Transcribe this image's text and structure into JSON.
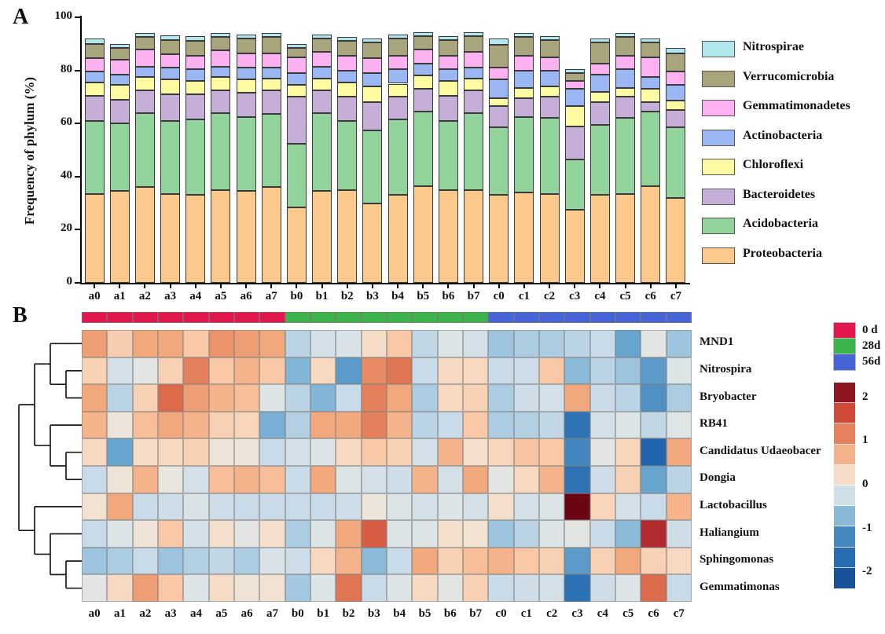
{
  "panel_a": {
    "label": "A",
    "ylabel": "Frequency of phylum (%)",
    "yticks": [
      0,
      20,
      40,
      60,
      80,
      100
    ],
    "ylim": [
      0,
      100
    ]
  },
  "panel_b": {
    "label": "B",
    "colorbar_ticks": [
      2,
      1,
      0,
      -1,
      -2
    ],
    "colorbar_range": [
      -2.35,
      2.35
    ]
  },
  "chart_data": [
    {
      "type": "bar",
      "stacked": true,
      "title": "",
      "xlabel": "",
      "ylabel": "Frequency of phylum (%)",
      "ylim": [
        0,
        100
      ],
      "grid": false,
      "legend_position": "right",
      "categories": [
        "a0",
        "a1",
        "a2",
        "a3",
        "a4",
        "a5",
        "a6",
        "a7",
        "b0",
        "b1",
        "b2",
        "b3",
        "b4",
        "b5",
        "b6",
        "b7",
        "c0",
        "c1",
        "c2",
        "c3",
        "c4",
        "c5",
        "c6",
        "c7"
      ],
      "series": [
        {
          "name": "Proteobacteria",
          "color": "#fbc98b",
          "values": [
            33.5,
            34.5,
            36,
            33.5,
            33,
            35,
            34.5,
            36,
            28.5,
            34.5,
            35,
            30,
            33,
            36.5,
            35,
            35,
            33,
            34,
            33.5,
            27.5,
            33,
            33.5,
            36.5,
            32
          ]
        },
        {
          "name": "Acidobacteria",
          "color": "#92d39c",
          "values": [
            27.5,
            25.5,
            28,
            27.5,
            28.5,
            29,
            28,
            27.5,
            24,
            29.5,
            26,
            27.5,
            28.5,
            28,
            26,
            29,
            25.5,
            28.5,
            28.5,
            19,
            26.5,
            28.5,
            28,
            26.5
          ]
        },
        {
          "name": "Bacteroidetes",
          "color": "#c5aed7",
          "values": [
            9.5,
            9,
            8.5,
            10,
            9.5,
            8.5,
            9,
            9,
            17.5,
            8.5,
            9,
            10.5,
            8.5,
            8.5,
            9.5,
            8.5,
            8,
            7,
            8,
            12.5,
            8.5,
            8,
            3.5,
            6.5
          ]
        },
        {
          "name": "Chloroflexi",
          "color": "#fcfba2",
          "values": [
            5,
            5.5,
            5,
            5.5,
            5,
            5,
            5,
            4.5,
            4.5,
            4.5,
            5.5,
            6,
            5,
            5,
            5.5,
            4.5,
            3,
            4,
            4,
            7.5,
            4,
            3.5,
            5,
            3.5
          ]
        },
        {
          "name": "Actinobacteria",
          "color": "#9ab7f3",
          "values": [
            4,
            4,
            4,
            4.5,
            4.5,
            4,
            4.5,
            4,
            4.5,
            4.5,
            4.5,
            5,
            5.5,
            4.5,
            4.5,
            4,
            7,
            6.5,
            6,
            6.5,
            6.5,
            7,
            4.5,
            6
          ]
        },
        {
          "name": "Gemmatimonadetes",
          "color": "#fcb2f1",
          "values": [
            5,
            5.5,
            6.5,
            5,
            5,
            6,
            5.5,
            5.5,
            6,
            5.5,
            5.5,
            5.5,
            5,
            5.5,
            5,
            6,
            4.5,
            5.5,
            5,
            3,
            4,
            5,
            7.5,
            5
          ]
        },
        {
          "name": "Verrucomicrobia",
          "color": "#a8a47c",
          "values": [
            5.5,
            4.5,
            4.5,
            5.5,
            5.5,
            5,
            5.5,
            6,
            3.5,
            5,
            5.5,
            6,
            6.5,
            5,
            6,
            6,
            8.5,
            7,
            6.5,
            3,
            8,
            7,
            5.5,
            7
          ]
        },
        {
          "name": "Nitrospirae",
          "color": "#b2e7ed",
          "values": [
            2,
            1.5,
            1.5,
            1.7,
            1.8,
            1.5,
            1.5,
            1.5,
            1.5,
            1.5,
            1.5,
            1.5,
            1.5,
            1.5,
            1.5,
            1.5,
            2.5,
            1.5,
            1.5,
            1.5,
            1.5,
            1.5,
            1.5,
            2
          ]
        }
      ]
    },
    {
      "type": "heatmap",
      "columns": [
        "a0",
        "a1",
        "a2",
        "a3",
        "a4",
        "a5",
        "a6",
        "a7",
        "b0",
        "b1",
        "b2",
        "b3",
        "b4",
        "b5",
        "b6",
        "b7",
        "c0",
        "c1",
        "c2",
        "c3",
        "c4",
        "c5",
        "c6",
        "c7"
      ],
      "rows": [
        "MND1",
        "Nitrospira",
        "Bryobacter",
        "RB41",
        "Candidatus Udaeobacer",
        "Dongia",
        "Lactobacillus",
        "Haliangium",
        "Sphingomonas",
        "Gemmatimonas"
      ],
      "value_range": [
        -2,
        2
      ],
      "column_groups": [
        {
          "label": "0 d",
          "color": "#e2174d",
          "from": 0,
          "to": 7
        },
        {
          "label": "28d",
          "color": "#3cb44b",
          "from": 8,
          "to": 15
        },
        {
          "label": "56d",
          "color": "#4565d6",
          "from": 16,
          "to": 23
        }
      ],
      "dendrogram_tree": [
        [
          [
            0,
            [
              1,
              2
            ]
          ],
          [
            3,
            [
              4,
              5
            ]
          ]
        ],
        [
          6,
          [
            7,
            [
              8,
              9
            ]
          ]
        ]
      ],
      "values": [
        [
          0.9,
          0.45,
          0.8,
          0.8,
          0.5,
          1.0,
          0.9,
          0.8,
          -0.4,
          -0.2,
          -0.15,
          0.25,
          0.5,
          -0.35,
          -0.1,
          -0.2,
          -0.6,
          -0.5,
          -0.5,
          -0.4,
          -0.3,
          -0.9,
          -0.05,
          -0.6
        ],
        [
          0.4,
          -0.2,
          -0.05,
          0.4,
          1.2,
          0.5,
          0.7,
          0.5,
          -0.75,
          0.3,
          -1.0,
          1.1,
          1.3,
          -0.3,
          0.3,
          0.3,
          -0.3,
          -0.25,
          0.5,
          -0.7,
          -0.4,
          -0.6,
          -1.0,
          -0.1
        ],
        [
          0.8,
          -0.4,
          0.4,
          1.4,
          0.9,
          0.7,
          0.6,
          -0.1,
          -0.4,
          -0.75,
          -0.3,
          1.2,
          0.8,
          -0.5,
          0.3,
          0.4,
          -0.5,
          -0.25,
          -0.2,
          0.8,
          -0.3,
          -0.4,
          -1.1,
          -0.5
        ],
        [
          0.7,
          0.05,
          0.6,
          0.8,
          0.7,
          0.4,
          0.35,
          -0.8,
          -0.45,
          0.8,
          0.8,
          1.2,
          0.7,
          -0.4,
          -0.3,
          0.5,
          -0.5,
          -0.45,
          -0.35,
          -1.5,
          -0.2,
          -0.1,
          -0.35,
          -0.08
        ],
        [
          0.3,
          -0.9,
          0.25,
          0.3,
          0.4,
          0.1,
          0.05,
          -0.3,
          -0.2,
          -0.1,
          0.3,
          0.5,
          0.4,
          -0.2,
          0.7,
          0.2,
          0.35,
          0.55,
          0.5,
          -1.2,
          -0.05,
          0.35,
          -1.8,
          0.8
        ],
        [
          -0.3,
          0.1,
          0.7,
          0.0,
          -0.2,
          0.6,
          0.7,
          0.6,
          -0.3,
          0.8,
          -0.1,
          -0.2,
          -0.25,
          0.7,
          -0.2,
          0.8,
          -0.05,
          0.3,
          0.7,
          -1.5,
          -0.25,
          0.4,
          -0.9,
          -0.4
        ],
        [
          0.15,
          0.8,
          -0.3,
          -0.25,
          -0.15,
          -0.25,
          -0.3,
          -0.3,
          -0.3,
          -0.3,
          -0.25,
          0.05,
          -0.1,
          -0.2,
          -0.1,
          -0.2,
          0.2,
          -0.2,
          -0.1,
          2.3,
          0.35,
          -0.2,
          -0.3,
          0.7
        ],
        [
          -0.3,
          -0.1,
          0.1,
          0.5,
          -0.2,
          0.2,
          -0.05,
          0.2,
          -0.5,
          -0.1,
          0.8,
          1.5,
          -0.1,
          -0.1,
          0.2,
          0.15,
          -0.6,
          -0.4,
          -0.1,
          -0.05,
          -0.3,
          -0.7,
          1.9,
          -0.25
        ],
        [
          -0.6,
          -0.5,
          -0.3,
          -0.6,
          -0.45,
          -0.35,
          -0.5,
          -0.15,
          -0.25,
          0.3,
          0.7,
          -0.7,
          -0.3,
          0.8,
          0.4,
          0.6,
          0.7,
          0.5,
          0.4,
          -1.0,
          0.4,
          0.8,
          0.4,
          0.3
        ],
        [
          -0.05,
          0.3,
          0.9,
          0.5,
          -0.1,
          0.25,
          0.1,
          0.15,
          -0.55,
          -0.1,
          1.3,
          -0.3,
          -0.1,
          0.3,
          -0.05,
          0.4,
          -0.3,
          -0.25,
          -0.2,
          -1.55,
          -0.25,
          -0.1,
          1.4,
          -0.3
        ]
      ]
    }
  ]
}
